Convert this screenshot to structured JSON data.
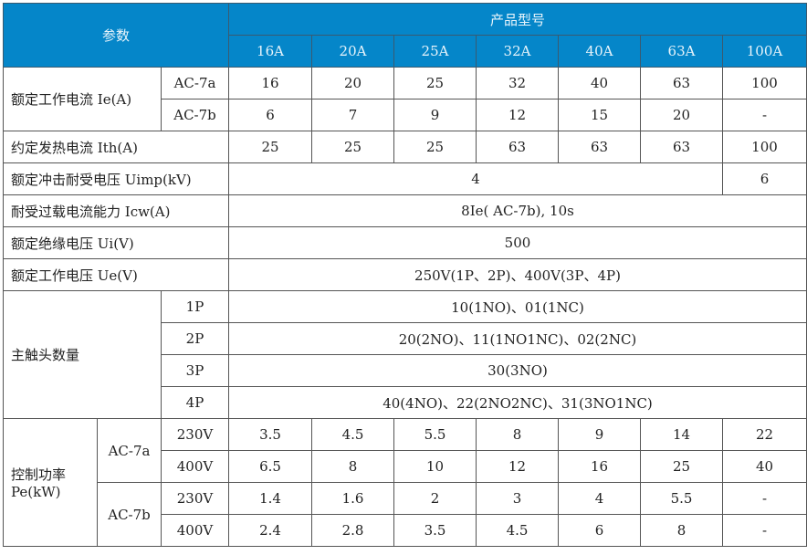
{
  "header": {
    "param": "参数",
    "model": "产品型号",
    "sizes": [
      "16A",
      "20A",
      "25A",
      "32A",
      "40A",
      "63A",
      "100A"
    ]
  },
  "rows": {
    "ie": {
      "label": "额定工作电流 Ie(A)",
      "a_label": "AC-7a",
      "a": [
        "16",
        "20",
        "25",
        "32",
        "40",
        "63",
        "100"
      ],
      "b_label": "AC-7b",
      "b": [
        "6",
        "7",
        "9",
        "12",
        "15",
        "20",
        "-"
      ]
    },
    "ith": {
      "label": "约定发热电流 Ith(A)",
      "values": [
        "25",
        "25",
        "25",
        "63",
        "63",
        "63",
        "100"
      ]
    },
    "uimp": {
      "label": "额定冲击耐受电压 Uimp(kV)",
      "v1": "4",
      "v2": "6"
    },
    "icw": {
      "label": "耐受过载电流能力 Icw(A)",
      "value": "8Ie( AC-7b), 10s"
    },
    "ui": {
      "label": "额定绝缘电压 Ui(V)",
      "value": "500"
    },
    "ue": {
      "label": "额定工作电压 Ue(V)",
      "value": "250V(1P、2P)、400V(3P、4P)"
    },
    "contacts": {
      "label": "主触头数量",
      "items": [
        {
          "pole": "1P",
          "value": "10(1NO)、01(1NC)"
        },
        {
          "pole": "2P",
          "value": "20(2NO)、11(1NO1NC)、02(2NC)"
        },
        {
          "pole": "3P",
          "value": "30(3NO)"
        },
        {
          "pole": "4P",
          "value": "40(4NO)、22(2NO2NC)、31(3NO1NC)"
        }
      ]
    },
    "pe": {
      "label1": "控制功率",
      "label2": "Pe(kW)",
      "a_label": "AC-7a",
      "a230": [
        "3.5",
        "4.5",
        "5.5",
        "8",
        "9",
        "14",
        "22"
      ],
      "a400": [
        "6.5",
        "8",
        "10",
        "12",
        "16",
        "25",
        "40"
      ],
      "b_label": "AC-7b",
      "b230": [
        "1.4",
        "1.6",
        "2",
        "3",
        "4",
        "5.5",
        "-"
      ],
      "b400": [
        "2.4",
        "2.8",
        "3.5",
        "4.5",
        "6",
        "8",
        "-"
      ],
      "v230": "230V",
      "v400": "400V"
    }
  },
  "colors": {
    "header_bg": "#0586c9"
  }
}
